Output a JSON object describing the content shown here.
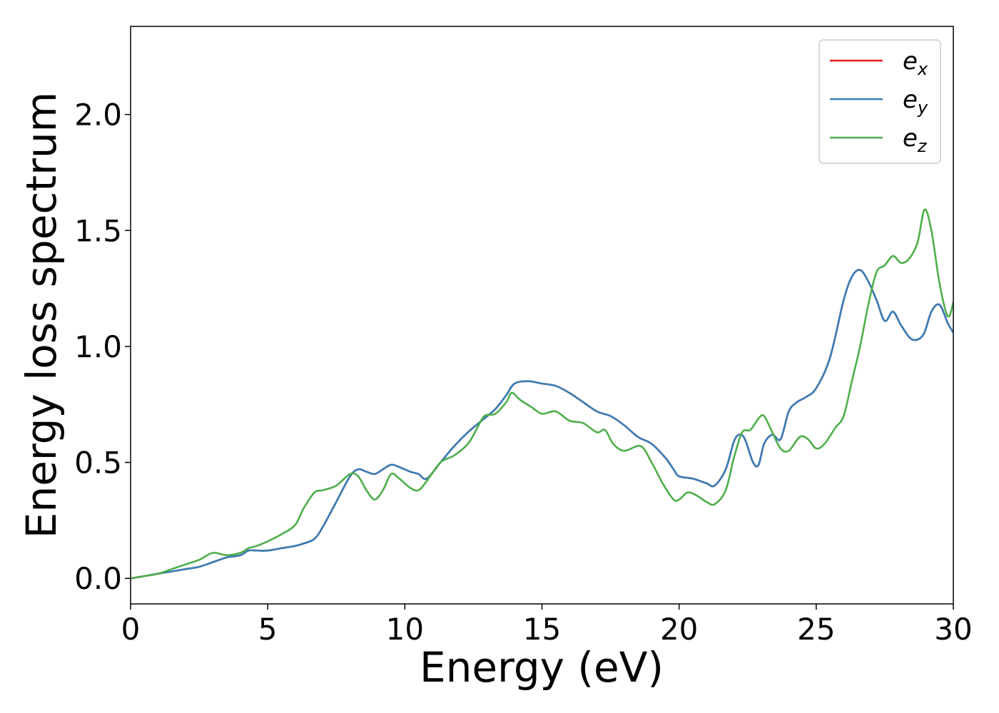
{
  "chart_data": {
    "type": "line",
    "xlabel": "Energy (eV)",
    "ylabel": "Energy loss spectrum",
    "xlim": [
      0,
      30
    ],
    "ylim": [
      -0.11,
      2.38
    ],
    "xticks": [
      0,
      5,
      10,
      15,
      20,
      25,
      30
    ],
    "xtick_labels": [
      "0",
      "5",
      "10",
      "15",
      "20",
      "25",
      "30"
    ],
    "yticks": [
      0.0,
      0.5,
      1.0,
      1.5,
      2.0
    ],
    "ytick_labels": [
      "0.0",
      "0.5",
      "1.0",
      "1.5",
      "2.0"
    ],
    "grid": false,
    "legend_position": "top-right",
    "colors": {
      "ex": "#e41a1c",
      "ey": "#377eb8",
      "ez": "#4daf4a"
    },
    "series": [
      {
        "key": "ex",
        "name": "e",
        "subscript": "x",
        "color": "#e41a1c",
        "x": [
          0,
          0.5,
          1,
          1.5,
          2,
          2.5,
          3,
          3.5,
          4,
          4.3,
          4.6,
          5,
          5.5,
          6,
          6.3,
          6.7,
          7,
          7.5,
          8,
          8.3,
          8.6,
          8.9,
          9.2,
          9.5,
          9.8,
          10.2,
          10.5,
          10.8,
          11.3,
          11.8,
          12.3,
          12.8,
          13.3,
          13.7,
          14,
          14.5,
          15,
          15.5,
          16,
          16.5,
          17,
          17.5,
          18,
          18.5,
          19,
          19.5,
          19.8,
          20,
          20.5,
          21,
          21.3,
          21.7,
          22,
          22.2,
          22.4,
          22.7,
          22.9,
          23.1,
          23.4,
          23.7,
          24,
          24.3,
          24.6,
          25,
          25.5,
          26,
          26.3,
          26.6,
          26.9,
          27.2,
          27.5,
          27.8,
          28.1,
          28.5,
          28.9,
          29.2,
          29.5,
          29.8,
          30
        ],
        "y": [
          0.0,
          0.01,
          0.02,
          0.03,
          0.04,
          0.05,
          0.07,
          0.09,
          0.1,
          0.12,
          0.12,
          0.12,
          0.13,
          0.14,
          0.15,
          0.17,
          0.22,
          0.33,
          0.44,
          0.47,
          0.46,
          0.45,
          0.47,
          0.49,
          0.48,
          0.46,
          0.45,
          0.43,
          0.5,
          0.57,
          0.63,
          0.68,
          0.73,
          0.79,
          0.84,
          0.85,
          0.84,
          0.83,
          0.8,
          0.76,
          0.72,
          0.7,
          0.66,
          0.61,
          0.58,
          0.52,
          0.47,
          0.44,
          0.43,
          0.41,
          0.4,
          0.47,
          0.59,
          0.62,
          0.6,
          0.5,
          0.49,
          0.58,
          0.62,
          0.6,
          0.72,
          0.76,
          0.78,
          0.82,
          0.95,
          1.2,
          1.3,
          1.33,
          1.28,
          1.2,
          1.11,
          1.15,
          1.09,
          1.03,
          1.05,
          1.15,
          1.18,
          1.1,
          1.06
        ]
      },
      {
        "key": "ey",
        "name": "e",
        "subscript": "y",
        "color": "#377eb8",
        "x": [
          0,
          0.5,
          1,
          1.5,
          2,
          2.5,
          3,
          3.5,
          4,
          4.3,
          4.6,
          5,
          5.5,
          6,
          6.3,
          6.7,
          7,
          7.5,
          8,
          8.3,
          8.6,
          8.9,
          9.2,
          9.5,
          9.8,
          10.2,
          10.5,
          10.8,
          11.3,
          11.8,
          12.3,
          12.8,
          13.3,
          13.7,
          14,
          14.5,
          15,
          15.5,
          16,
          16.5,
          17,
          17.5,
          18,
          18.5,
          19,
          19.5,
          19.8,
          20,
          20.5,
          21,
          21.3,
          21.7,
          22,
          22.2,
          22.4,
          22.7,
          22.9,
          23.1,
          23.4,
          23.7,
          24,
          24.3,
          24.6,
          25,
          25.5,
          26,
          26.3,
          26.6,
          26.9,
          27.2,
          27.5,
          27.8,
          28.1,
          28.5,
          28.9,
          29.2,
          29.5,
          29.8,
          30
        ],
        "y": [
          0.0,
          0.01,
          0.02,
          0.03,
          0.04,
          0.05,
          0.07,
          0.09,
          0.1,
          0.12,
          0.12,
          0.12,
          0.13,
          0.14,
          0.15,
          0.17,
          0.22,
          0.33,
          0.44,
          0.47,
          0.46,
          0.45,
          0.47,
          0.49,
          0.48,
          0.46,
          0.45,
          0.43,
          0.5,
          0.57,
          0.63,
          0.68,
          0.73,
          0.79,
          0.84,
          0.85,
          0.84,
          0.83,
          0.8,
          0.76,
          0.72,
          0.7,
          0.66,
          0.61,
          0.58,
          0.52,
          0.47,
          0.44,
          0.43,
          0.41,
          0.4,
          0.47,
          0.59,
          0.62,
          0.6,
          0.5,
          0.49,
          0.58,
          0.62,
          0.6,
          0.72,
          0.76,
          0.78,
          0.82,
          0.95,
          1.2,
          1.3,
          1.33,
          1.28,
          1.2,
          1.11,
          1.15,
          1.09,
          1.03,
          1.05,
          1.15,
          1.18,
          1.1,
          1.06
        ]
      },
      {
        "key": "ez",
        "name": "e",
        "subscript": "z",
        "color": "#4daf4a",
        "x": [
          0,
          0.5,
          1,
          1.5,
          2,
          2.5,
          3,
          3.5,
          4,
          4.3,
          4.6,
          5,
          5.5,
          6,
          6.3,
          6.7,
          7,
          7.5,
          8,
          8.3,
          8.6,
          8.9,
          9.2,
          9.5,
          9.8,
          10.2,
          10.5,
          10.8,
          11.3,
          11.8,
          12.3,
          12.6,
          12.9,
          13.3,
          13.7,
          13.9,
          14.2,
          14.6,
          15,
          15.5,
          16,
          16.5,
          17,
          17.3,
          17.6,
          18,
          18.6,
          19,
          19.4,
          19.8,
          20,
          20.3,
          20.6,
          21,
          21.3,
          21.7,
          22,
          22.3,
          22.6,
          22.9,
          23.1,
          23.4,
          23.7,
          24,
          24.4,
          24.7,
          25,
          25.3,
          25.7,
          26,
          26.3,
          26.6,
          26.9,
          27.2,
          27.5,
          27.8,
          28.1,
          28.4,
          28.7,
          28.95,
          29.2,
          29.5,
          29.8,
          30
        ],
        "y": [
          0.0,
          0.01,
          0.02,
          0.04,
          0.06,
          0.08,
          0.11,
          0.1,
          0.11,
          0.13,
          0.14,
          0.16,
          0.19,
          0.23,
          0.3,
          0.37,
          0.38,
          0.4,
          0.45,
          0.44,
          0.38,
          0.34,
          0.38,
          0.45,
          0.43,
          0.39,
          0.38,
          0.42,
          0.5,
          0.53,
          0.58,
          0.64,
          0.7,
          0.71,
          0.76,
          0.8,
          0.77,
          0.74,
          0.71,
          0.72,
          0.68,
          0.67,
          0.63,
          0.64,
          0.58,
          0.55,
          0.57,
          0.5,
          0.41,
          0.34,
          0.34,
          0.37,
          0.36,
          0.33,
          0.32,
          0.38,
          0.52,
          0.63,
          0.64,
          0.69,
          0.7,
          0.63,
          0.56,
          0.55,
          0.61,
          0.6,
          0.56,
          0.58,
          0.65,
          0.7,
          0.85,
          1.0,
          1.18,
          1.32,
          1.35,
          1.39,
          1.36,
          1.38,
          1.45,
          1.59,
          1.5,
          1.27,
          1.13,
          1.19
        ]
      }
    ]
  }
}
